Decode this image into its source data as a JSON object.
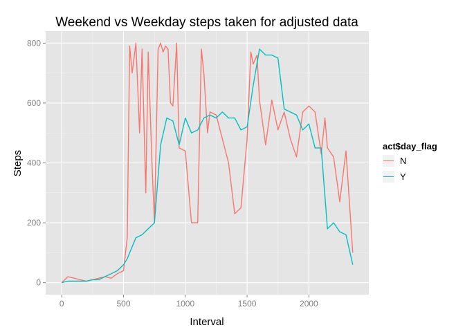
{
  "chart_data": {
    "type": "line",
    "title": "Weekend vs Weekday steps taken for adjusted data",
    "xlabel": "Interval",
    "ylabel": "Steps",
    "xlim": [
      -130,
      2485
    ],
    "ylim": [
      -40,
      840
    ],
    "x_ticks": [
      0,
      500,
      1000,
      1500,
      2000
    ],
    "y_ticks": [
      0,
      200,
      400,
      600,
      800
    ],
    "grid": true,
    "legend": {
      "title": "act$day_flag",
      "position": "right",
      "entries": [
        {
          "label": "N",
          "color": "#F8766D"
        },
        {
          "label": "Y",
          "color": "#00BFC4"
        }
      ]
    },
    "series": [
      {
        "name": "N",
        "color": "#F8766D",
        "x": [
          0,
          50,
          100,
          150,
          200,
          250,
          300,
          350,
          400,
          450,
          500,
          530,
          550,
          570,
          600,
          630,
          650,
          680,
          700,
          730,
          750,
          780,
          800,
          820,
          840,
          860,
          880,
          900,
          930,
          950,
          1000,
          1050,
          1100,
          1130,
          1150,
          1180,
          1200,
          1250,
          1300,
          1350,
          1400,
          1450,
          1500,
          1530,
          1550,
          1580,
          1600,
          1650,
          1700,
          1750,
          1800,
          1850,
          1900,
          1950,
          2000,
          2050,
          2100,
          2130,
          2150,
          2200,
          2250,
          2300,
          2355
        ],
        "values": [
          0,
          20,
          15,
          10,
          5,
          10,
          15,
          20,
          15,
          30,
          40,
          150,
          790,
          700,
          800,
          500,
          780,
          300,
          770,
          400,
          200,
          780,
          800,
          770,
          790,
          780,
          600,
          590,
          800,
          450,
          440,
          200,
          200,
          780,
          700,
          500,
          570,
          560,
          480,
          400,
          230,
          250,
          480,
          770,
          730,
          760,
          610,
          460,
          610,
          510,
          570,
          480,
          420,
          570,
          590,
          570,
          430,
          550,
          450,
          420,
          270,
          440,
          100
        ]
      },
      {
        "name": "Y",
        "color": "#00BFC4",
        "x": [
          0,
          50,
          100,
          150,
          200,
          250,
          300,
          350,
          400,
          450,
          500,
          530,
          550,
          600,
          650,
          700,
          750,
          800,
          850,
          900,
          950,
          1000,
          1050,
          1100,
          1150,
          1200,
          1250,
          1300,
          1350,
          1400,
          1450,
          1500,
          1550,
          1600,
          1650,
          1700,
          1750,
          1800,
          1850,
          1900,
          1950,
          2000,
          2050,
          2100,
          2150,
          2200,
          2250,
          2300,
          2355
        ],
        "values": [
          0,
          5,
          5,
          5,
          5,
          10,
          10,
          20,
          30,
          40,
          60,
          80,
          100,
          150,
          160,
          180,
          200,
          460,
          550,
          540,
          460,
          550,
          500,
          510,
          550,
          560,
          550,
          570,
          550,
          550,
          510,
          520,
          660,
          780,
          760,
          760,
          750,
          580,
          570,
          560,
          510,
          530,
          450,
          450,
          180,
          200,
          170,
          160,
          60
        ]
      }
    ]
  }
}
